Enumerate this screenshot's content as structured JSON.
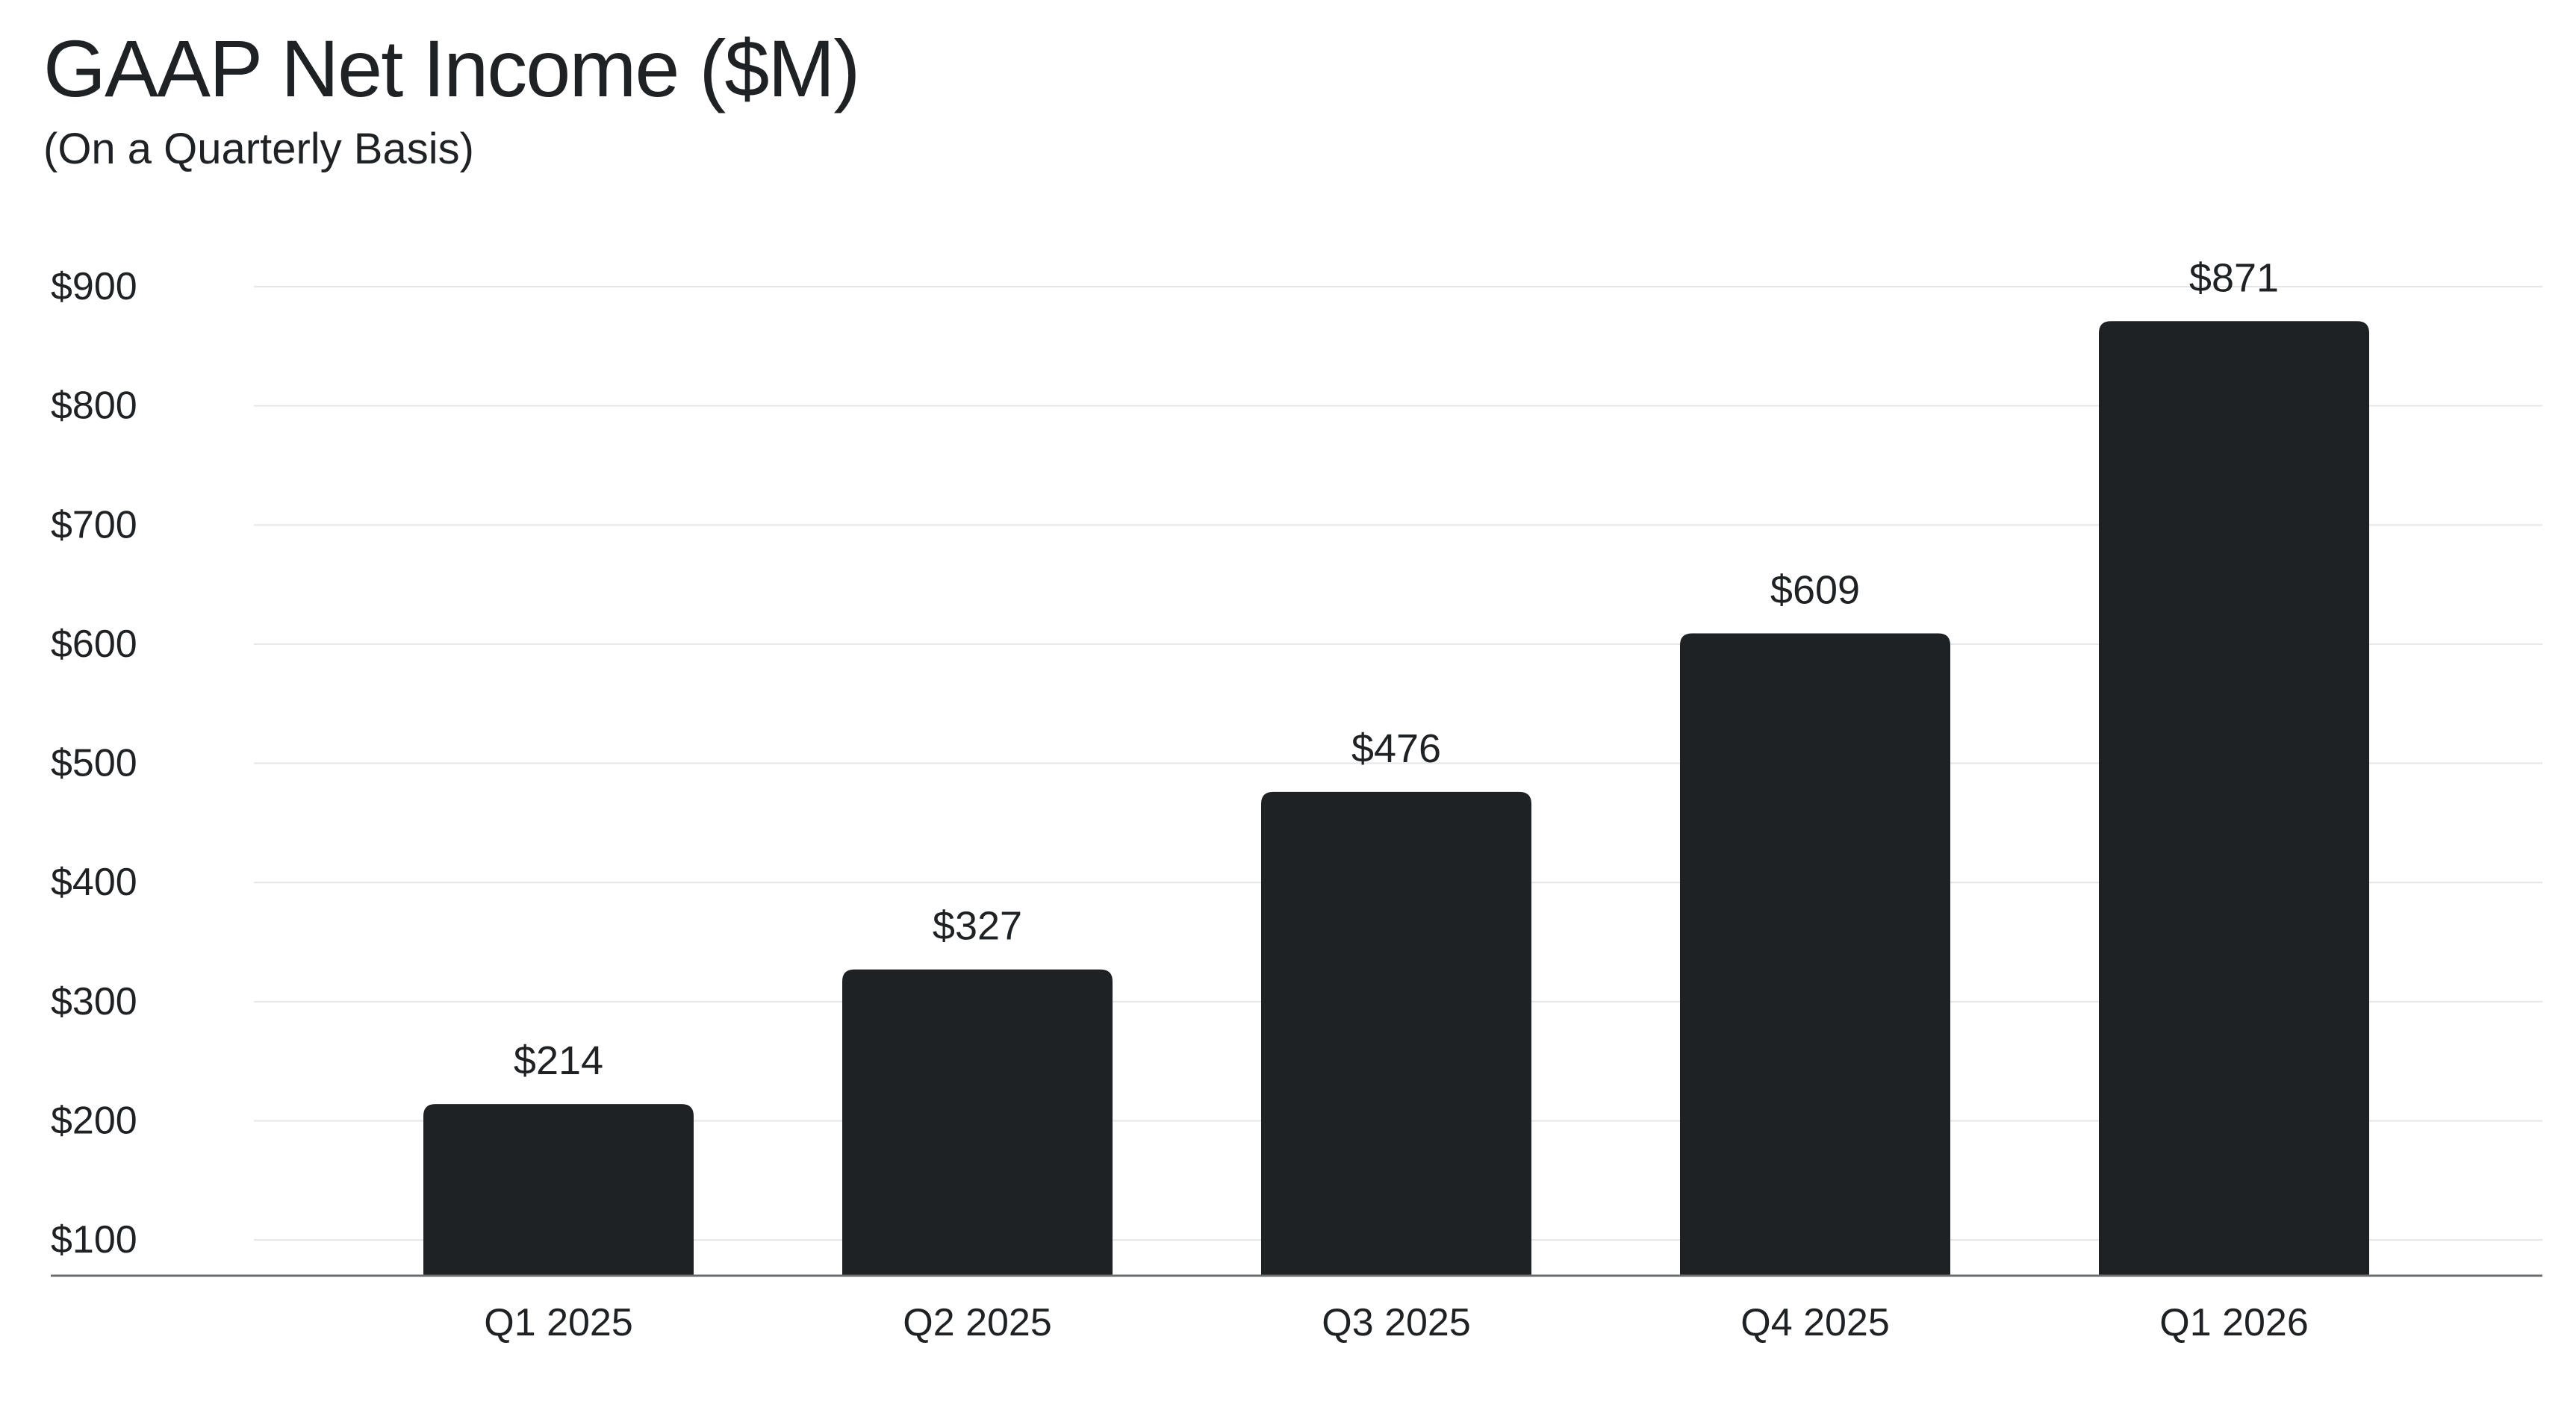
{
  "chart_data": {
    "type": "bar",
    "title": "GAAP Net Income ($M)",
    "subtitle": "(On a Quarterly Basis)",
    "xlabel": "",
    "ylabel": "",
    "categories": [
      "Q1  2025",
      "Q2  2025",
      "Q3  2025",
      "Q4  2025",
      "Q1  2026"
    ],
    "values": [
      214,
      327,
      476,
      609,
      871
    ],
    "data_labels": [
      "$214",
      "$327",
      "$476",
      "$609",
      "$871"
    ],
    "y_ticks": [
      100,
      200,
      300,
      400,
      500,
      600,
      700,
      800,
      900
    ],
    "y_tick_labels": [
      "$100",
      "$200",
      "$300",
      "$400",
      "$500",
      "$600",
      "$700",
      "$800",
      "$900"
    ],
    "ylim": [
      70,
      905
    ],
    "grid": true,
    "legend": "none",
    "colors": {
      "bar": "#1f2224",
      "grid": "#e6e6e6",
      "axis": "#6b6e70",
      "text": "#1f2224"
    }
  }
}
